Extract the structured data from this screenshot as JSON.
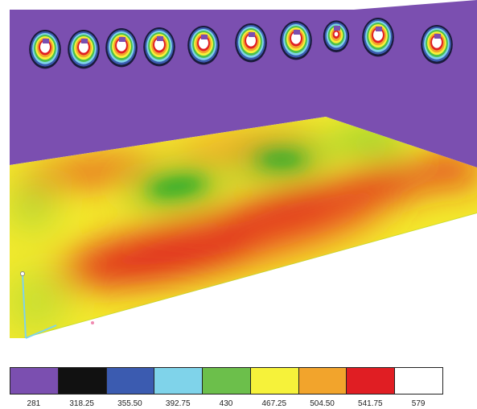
{
  "scene": {
    "wall_color": "#7b4fb0",
    "floor_heat_palette": [
      "#1fa82a",
      "#5cc22f",
      "#b8d931",
      "#f7ef2c",
      "#f5b026",
      "#ef6a22",
      "#e0201e"
    ],
    "ceiling_fixture_count": 10
  },
  "legend": {
    "bins": [
      {
        "color": "#7b4fb0",
        "label": "281"
      },
      {
        "color": "#111111",
        "label": "318.25"
      },
      {
        "color": "#3b5bb0",
        "label": "355.50"
      },
      {
        "color": "#7fd3ea",
        "label": "392.75"
      },
      {
        "color": "#6cbf4b",
        "label": "430"
      },
      {
        "color": "#f6f23a",
        "label": "467.25"
      },
      {
        "color": "#f2a42c",
        "label": "504.50"
      },
      {
        "color": "#e01e23",
        "label": "541.75"
      },
      {
        "color": "#ffffff",
        "label": "579"
      }
    ]
  }
}
